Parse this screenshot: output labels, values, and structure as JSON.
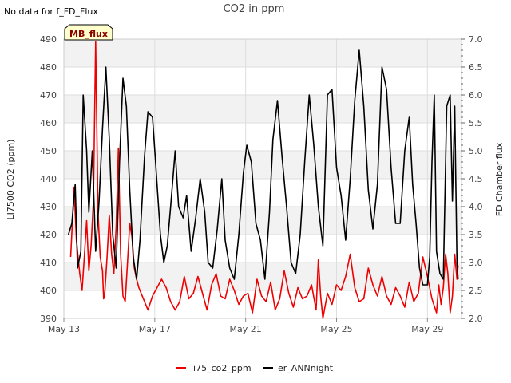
{
  "note": "No data for f_FD_Flux",
  "badge": {
    "label": "MB_flux",
    "fill": "#ffffcc",
    "text_color": "#8b0000"
  },
  "chart_data": {
    "type": "line",
    "title": "CO2 in ppm",
    "xlabel": "",
    "ylabel": "LI7500 CO2 (ppm)",
    "y2label": "FD Chamber flux",
    "x_ticks": [
      {
        "label": "May 13",
        "day": 13
      },
      {
        "label": "May 17",
        "day": 17
      },
      {
        "label": "May 21",
        "day": 21
      },
      {
        "label": "May 25",
        "day": 25
      },
      {
        "label": "May 29",
        "day": 29
      }
    ],
    "xlim": [
      13,
      30.5
    ],
    "ylim": [
      390,
      490
    ],
    "y_ticks": [
      390,
      400,
      410,
      420,
      430,
      440,
      450,
      460,
      470,
      480,
      490
    ],
    "y2lim": [
      2.0,
      7.0
    ],
    "y2_ticks": [
      "2.0",
      "2.5",
      "3.0",
      "3.5",
      "4.0",
      "4.5",
      "5.0",
      "5.5",
      "6.0",
      "6.5",
      "7.0"
    ],
    "grid": true,
    "legend_position": "bottom",
    "series": [
      {
        "name": "li75_co2_ppm",
        "color": "#ee0000",
        "x": [
          13.3,
          13.45,
          13.55,
          13.7,
          13.8,
          13.9,
          14.0,
          14.1,
          14.2,
          14.3,
          14.4,
          14.5,
          14.6,
          14.7,
          14.75,
          14.8,
          14.9,
          15.0,
          15.1,
          15.2,
          15.3,
          15.4,
          15.5,
          15.6,
          15.7,
          15.8,
          15.9,
          16.0,
          16.1,
          16.2,
          16.3,
          16.5,
          16.7,
          16.9,
          17.1,
          17.3,
          17.5,
          17.7,
          17.9,
          18.1,
          18.3,
          18.5,
          18.7,
          18.9,
          19.1,
          19.3,
          19.5,
          19.7,
          19.9,
          20.1,
          20.3,
          20.5,
          20.7,
          20.9,
          21.1,
          21.3,
          21.5,
          21.7,
          21.9,
          22.1,
          22.3,
          22.5,
          22.7,
          22.9,
          23.1,
          23.3,
          23.5,
          23.7,
          23.9,
          24.1,
          24.2,
          24.3,
          24.4,
          24.6,
          24.8,
          25.0,
          25.2,
          25.4,
          25.6,
          25.8,
          26.0,
          26.2,
          26.4,
          26.6,
          26.8,
          27.0,
          27.2,
          27.4,
          27.6,
          27.8,
          28.0,
          28.2,
          28.4,
          28.6,
          28.8,
          29.0,
          29.2,
          29.4,
          29.5,
          29.6,
          29.7,
          29.8,
          29.9,
          30.0,
          30.1,
          30.2,
          30.3,
          30.35
        ],
        "values": [
          412,
          437,
          418,
          406,
          400,
          412,
          425,
          407,
          416,
          432,
          489,
          428,
          412,
          407,
          397,
          399,
          412,
          427,
          413,
          406,
          423,
          451,
          413,
          398,
          396,
          410,
          424,
          419,
          408,
          404,
          401,
          397,
          393,
          398,
          401,
          404,
          401,
          396,
          393,
          396,
          405,
          397,
          399,
          405,
          399,
          393,
          402,
          406,
          398,
          397,
          404,
          400,
          395,
          398,
          399,
          392,
          404,
          398,
          396,
          403,
          393,
          397,
          407,
          399,
          394,
          401,
          397,
          398,
          402,
          393,
          411,
          398,
          390,
          399,
          395,
          402,
          400,
          405,
          413,
          401,
          396,
          397,
          408,
          402,
          398,
          405,
          398,
          395,
          401,
          398,
          394,
          403,
          396,
          399,
          412,
          405,
          397,
          392,
          402,
          395,
          401,
          413,
          406,
          392,
          398,
          413,
          404,
          409
        ]
      },
      {
        "name": "er_ANNnight",
        "color": "#000000",
        "x": [
          13.2,
          13.35,
          13.5,
          13.6,
          13.75,
          13.85,
          14.0,
          14.1,
          14.25,
          14.4,
          14.55,
          14.7,
          14.85,
          15.0,
          15.15,
          15.3,
          15.45,
          15.6,
          15.75,
          15.9,
          16.05,
          16.2,
          16.35,
          16.55,
          16.7,
          16.9,
          17.05,
          17.25,
          17.4,
          17.55,
          17.7,
          17.9,
          18.05,
          18.25,
          18.4,
          18.6,
          18.8,
          19.0,
          19.2,
          19.35,
          19.55,
          19.75,
          19.95,
          20.1,
          20.3,
          20.5,
          20.7,
          20.9,
          21.05,
          21.25,
          21.45,
          21.65,
          21.85,
          22.05,
          22.2,
          22.4,
          22.6,
          22.8,
          23.0,
          23.2,
          23.4,
          23.6,
          23.8,
          24.0,
          24.2,
          24.4,
          24.6,
          24.8,
          25.0,
          25.2,
          25.4,
          25.6,
          25.8,
          26.0,
          26.2,
          26.4,
          26.6,
          26.8,
          27.0,
          27.2,
          27.4,
          27.6,
          27.8,
          28.0,
          28.2,
          28.35,
          28.5,
          28.65,
          28.8,
          29.0,
          29.1,
          29.2,
          29.3,
          29.4,
          29.55,
          29.7,
          29.85,
          30.0,
          30.1,
          30.2,
          30.3,
          30.35
        ],
        "values": [
          3.5,
          3.7,
          4.4,
          2.9,
          3.2,
          6.0,
          5.0,
          3.9,
          5.0,
          3.2,
          4.1,
          5.4,
          6.5,
          5.2,
          3.5,
          2.9,
          4.8,
          6.3,
          5.8,
          4.3,
          3.1,
          2.7,
          3.4,
          4.9,
          5.7,
          5.6,
          4.7,
          3.5,
          3.0,
          3.3,
          4.0,
          5.0,
          4.0,
          3.8,
          4.2,
          3.2,
          3.8,
          4.5,
          3.9,
          3.0,
          2.9,
          3.6,
          4.5,
          3.4,
          2.9,
          2.7,
          3.5,
          4.6,
          5.1,
          4.8,
          3.7,
          3.4,
          2.7,
          3.9,
          5.2,
          5.9,
          4.9,
          4.0,
          3.0,
          2.8,
          3.5,
          4.8,
          6.0,
          5.1,
          4.0,
          3.3,
          6.0,
          6.1,
          4.7,
          4.2,
          3.4,
          4.5,
          5.9,
          6.8,
          5.8,
          4.3,
          3.6,
          4.4,
          6.5,
          6.1,
          4.7,
          3.7,
          3.7,
          5.0,
          5.6,
          4.4,
          3.7,
          2.9,
          2.6,
          2.6,
          3.1,
          4.8,
          6.0,
          3.2,
          2.8,
          2.7,
          5.8,
          6.0,
          4.1,
          5.8,
          3.0,
          2.7
        ]
      }
    ]
  }
}
